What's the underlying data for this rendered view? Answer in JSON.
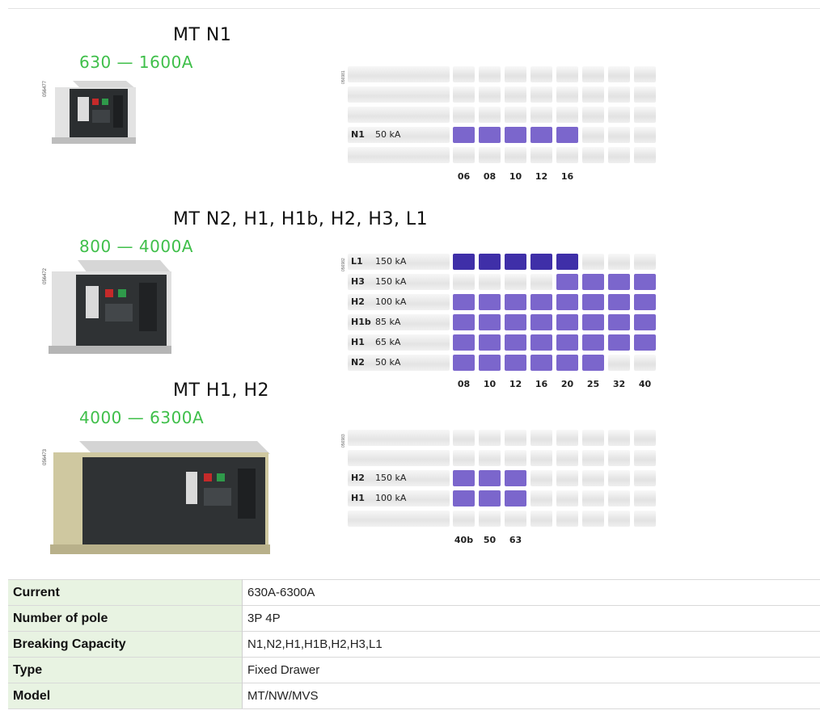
{
  "sections": [
    {
      "title": "MT N1",
      "range": "630 — 1600A",
      "photo_code": "056477",
      "grid_code": "056981",
      "grid": {
        "rows": [
          {
            "code": "",
            "ka": "",
            "fill": [
              0,
              0,
              0,
              0,
              0,
              0,
              0,
              0
            ]
          },
          {
            "code": "",
            "ka": "",
            "fill": [
              0,
              0,
              0,
              0,
              0,
              0,
              0,
              0
            ]
          },
          {
            "code": "",
            "ka": "",
            "fill": [
              0,
              0,
              0,
              0,
              0,
              0,
              0,
              0
            ]
          },
          {
            "code": "N1",
            "ka": "50 kA",
            "fill": [
              1,
              1,
              1,
              1,
              1,
              0,
              0,
              0
            ]
          },
          {
            "code": "",
            "ka": "",
            "fill": [
              0,
              0,
              0,
              0,
              0,
              0,
              0,
              0
            ]
          }
        ],
        "ticks": [
          "06",
          "08",
          "10",
          "12",
          "16"
        ]
      }
    },
    {
      "title": "MT N2, H1, H1b, H2, H3, L1",
      "range": "800 — 4000A",
      "photo_code": "056472",
      "grid_code": "056982",
      "grid": {
        "rows": [
          {
            "code": "L1",
            "ka": "150 kA",
            "fill": [
              2,
              2,
              2,
              2,
              2,
              0,
              0,
              0
            ]
          },
          {
            "code": "H3",
            "ka": "150 kA",
            "fill": [
              0,
              0,
              0,
              0,
              1,
              1,
              1,
              1
            ]
          },
          {
            "code": "H2",
            "ka": "100 kA",
            "fill": [
              1,
              1,
              1,
              1,
              1,
              1,
              1,
              1
            ]
          },
          {
            "code": "H1b",
            "ka": "85 kA",
            "fill": [
              1,
              1,
              1,
              1,
              1,
              1,
              1,
              1
            ]
          },
          {
            "code": "H1",
            "ka": "65 kA",
            "fill": [
              1,
              1,
              1,
              1,
              1,
              1,
              1,
              1
            ]
          },
          {
            "code": "N2",
            "ka": "50 kA",
            "fill": [
              1,
              1,
              1,
              1,
              1,
              1,
              0,
              0
            ]
          }
        ],
        "ticks": [
          "08",
          "10",
          "12",
          "16",
          "20",
          "25",
          "32",
          "40"
        ]
      }
    },
    {
      "title": "MT H1, H2",
      "range": "4000 — 6300A",
      "photo_code": "056473",
      "grid_code": "056983",
      "grid": {
        "rows": [
          {
            "code": "",
            "ka": "",
            "fill": [
              0,
              0,
              0,
              0,
              0,
              0,
              0,
              0
            ]
          },
          {
            "code": "",
            "ka": "",
            "fill": [
              0,
              0,
              0,
              0,
              0,
              0,
              0,
              0
            ]
          },
          {
            "code": "H2",
            "ka": "150 kA",
            "fill": [
              1,
              1,
              1,
              0,
              0,
              0,
              0,
              0
            ]
          },
          {
            "code": "H1",
            "ka": "100 kA",
            "fill": [
              1,
              1,
              1,
              0,
              0,
              0,
              0,
              0
            ]
          },
          {
            "code": "",
            "ka": "",
            "fill": [
              0,
              0,
              0,
              0,
              0,
              0,
              0,
              0
            ]
          }
        ],
        "ticks": [
          "40b",
          "50",
          "63"
        ]
      }
    }
  ],
  "spec_table": [
    {
      "key": "Current",
      "value": "630A-6300A"
    },
    {
      "key": "Number of pole",
      "value": "3P 4P"
    },
    {
      "key": "Breaking Capacity",
      "value": "N1,N2,H1,H1B,H2,H3,L1"
    },
    {
      "key": "Type",
      "value": "Fixed Drawer"
    },
    {
      "key": "Model",
      "value": "MT/NW/MVS"
    }
  ],
  "colors": {
    "range_green": "#3fbf4a",
    "cell_purple": "#7b66cc",
    "cell_dark": "#3f2fa8",
    "table_key_bg": "#e8f3e2"
  }
}
